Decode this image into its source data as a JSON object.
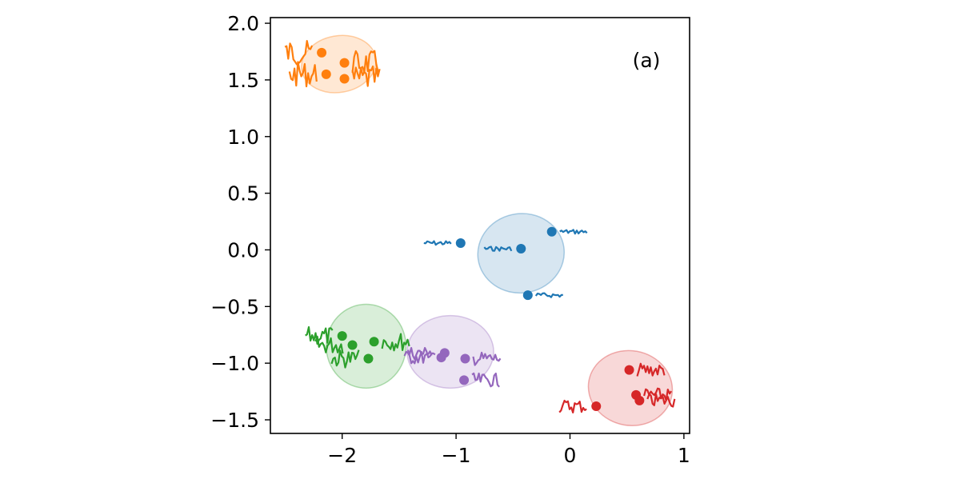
{
  "chart_data": {
    "type": "scatter",
    "title": "",
    "xlabel": "",
    "ylabel": "",
    "xlim": [
      -2.63,
      1.05
    ],
    "ylim": [
      -1.62,
      2.05
    ],
    "grid": false,
    "annotation": "(a)",
    "x_ticks": [
      {
        "value": -2,
        "label": "−2"
      },
      {
        "value": -1,
        "label": "−1"
      },
      {
        "value": 0,
        "label": "0"
      },
      {
        "value": 1,
        "label": "1"
      }
    ],
    "y_ticks": [
      {
        "value": 2.0,
        "label": "2.0"
      },
      {
        "value": 1.5,
        "label": "1.5"
      },
      {
        "value": 1.0,
        "label": "1.0"
      },
      {
        "value": 0.5,
        "label": "0.5"
      },
      {
        "value": 0.0,
        "label": "0.0"
      },
      {
        "value": -0.5,
        "label": "−0.5"
      },
      {
        "value": -1.0,
        "label": "−1.0"
      },
      {
        "value": -1.5,
        "label": "−1.5"
      }
    ],
    "series": [
      {
        "color": "#1f77b4",
        "ellipse": {
          "cx": -0.43,
          "cy": -0.03,
          "rx": 0.38,
          "ry": 0.35,
          "angle": 8
        },
        "points": [
          {
            "x": -0.96,
            "y": 0.06,
            "squiggle": "left",
            "amp": 0.02
          },
          {
            "x": -0.43,
            "y": 0.01,
            "squiggle": "left",
            "amp": 0.02
          },
          {
            "x": -0.16,
            "y": 0.16,
            "squiggle": "right",
            "amp": 0.02
          },
          {
            "x": -0.37,
            "y": -0.4,
            "squiggle": "right",
            "amp": 0.02
          }
        ]
      },
      {
        "color": "#ff7f0e",
        "ellipse": {
          "cx": -2.03,
          "cy": 1.64,
          "rx": 0.33,
          "ry": 0.25,
          "angle": 10
        },
        "points": [
          {
            "x": -2.18,
            "y": 1.74,
            "squiggle": "left",
            "amp": 0.11
          },
          {
            "x": -2.14,
            "y": 1.55,
            "squiggle": "left",
            "amp": 0.11
          },
          {
            "x": -1.98,
            "y": 1.65,
            "squiggle": "right",
            "amp": 0.11
          },
          {
            "x": -1.98,
            "y": 1.51,
            "squiggle": "right",
            "amp": 0.11
          }
        ]
      },
      {
        "color": "#2ca02c",
        "ellipse": {
          "cx": -1.79,
          "cy": -0.85,
          "rx": 0.35,
          "ry": 0.37,
          "angle": 0
        },
        "points": [
          {
            "x": -2.0,
            "y": -0.76,
            "squiggle": "left",
            "amp": 0.08
          },
          {
            "x": -1.91,
            "y": -0.84,
            "squiggle": "left",
            "amp": 0.08
          },
          {
            "x": -1.72,
            "y": -0.81,
            "squiggle": "right",
            "amp": 0.08
          },
          {
            "x": -1.77,
            "y": -0.96,
            "squiggle": "left",
            "amp": 0.08
          }
        ]
      },
      {
        "color": "#d62728",
        "ellipse": {
          "cx": 0.53,
          "cy": -1.22,
          "rx": 0.37,
          "ry": 0.33,
          "angle": -10
        },
        "points": [
          {
            "x": 0.52,
            "y": -1.06,
            "squiggle": "right",
            "amp": 0.06
          },
          {
            "x": 0.58,
            "y": -1.28,
            "squiggle": "right",
            "amp": 0.06
          },
          {
            "x": 0.61,
            "y": -1.33,
            "squiggle": "right",
            "amp": 0.06
          },
          {
            "x": 0.23,
            "y": -1.38,
            "squiggle": "left",
            "amp": 0.06
          }
        ]
      },
      {
        "color": "#9467bd",
        "ellipse": {
          "cx": -1.05,
          "cy": -0.9,
          "rx": 0.38,
          "ry": 0.32,
          "angle": 0
        },
        "points": [
          {
            "x": -1.1,
            "y": -0.91,
            "squiggle": "left",
            "amp": 0.06
          },
          {
            "x": -1.13,
            "y": -0.95,
            "squiggle": "left",
            "amp": 0.06
          },
          {
            "x": -0.92,
            "y": -0.96,
            "squiggle": "right",
            "amp": 0.06
          },
          {
            "x": -0.93,
            "y": -1.15,
            "squiggle": "right",
            "amp": 0.06
          }
        ]
      }
    ]
  }
}
